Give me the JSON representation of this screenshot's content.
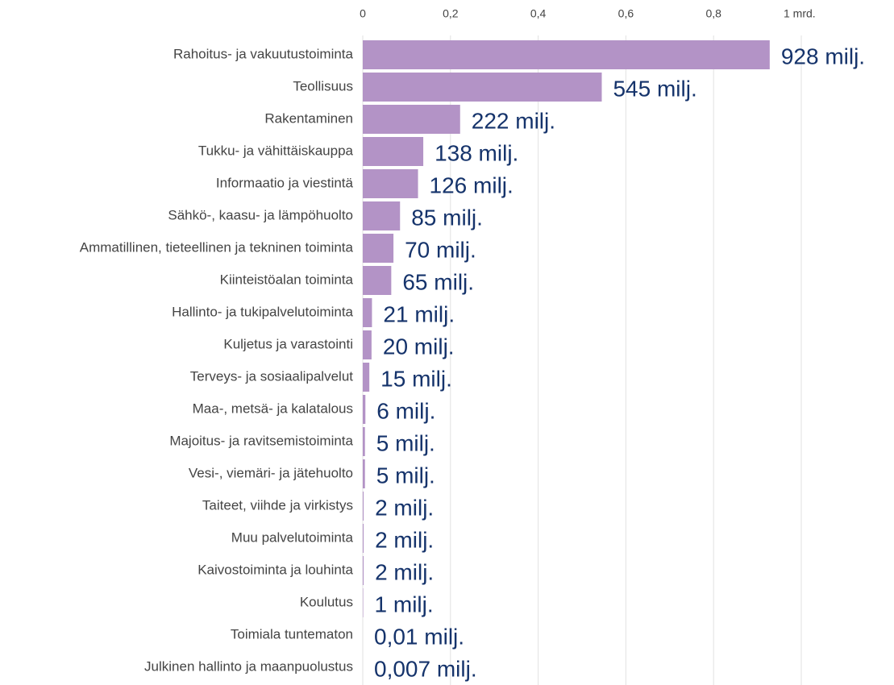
{
  "chart_data": {
    "type": "hbar",
    "categories": [
      "Rahoitus- ja vakuutustoiminta",
      "Teollisuus",
      "Rakentaminen",
      "Tukku- ja vähittäiskauppa",
      "Informaatio ja viestintä",
      "Sähkö-, kaasu- ja lämpöhuolto",
      "Ammatillinen, tieteellinen ja tekninen toiminta",
      "Kiinteistöalan toiminta",
      "Hallinto- ja tukipalvelutoiminta",
      "Kuljetus ja varastointi",
      "Terveys- ja sosiaalipalvelut",
      "Maa-, metsä- ja kalatalous",
      "Majoitus- ja ravitsemistoiminta",
      "Vesi-, viemäri- ja jätehuolto",
      "Taiteet, viihde ja virkistys",
      "Muu palvelutoiminta",
      "Kaivostoiminta ja louhinta",
      "Koulutus",
      "Toimiala tuntematon",
      "Julkinen hallinto ja maanpuolustus"
    ],
    "values": [
      0.928,
      0.545,
      0.222,
      0.138,
      0.126,
      0.085,
      0.07,
      0.065,
      0.021,
      0.02,
      0.015,
      0.006,
      0.005,
      0.005,
      0.002,
      0.002,
      0.002,
      0.001,
      1e-05,
      7e-06
    ],
    "value_labels": [
      "928 milj.",
      "545 milj.",
      "222 milj.",
      "138 milj.",
      "126 milj.",
      "85 milj.",
      "70 milj.",
      "65 milj.",
      "21 milj.",
      "20 milj.",
      "15 milj.",
      "6 milj.",
      "5 milj.",
      "5 milj.",
      "2 milj.",
      "2 milj.",
      "2 milj.",
      "1 milj.",
      "0,01 milj.",
      "0,007 milj."
    ],
    "color": "#b393c6",
    "xlim": [
      0,
      1
    ],
    "xticks": [
      0,
      {
        "value": 0.2,
        "label": "0,2"
      },
      {
        "value": 0.4,
        "label": "0,4"
      },
      {
        "value": 0.6,
        "label": "0,6"
      },
      {
        "value": 0.8,
        "label": "0,8"
      },
      {
        "value": 1,
        "label": "1 mrd."
      }
    ],
    "grid": true
  }
}
